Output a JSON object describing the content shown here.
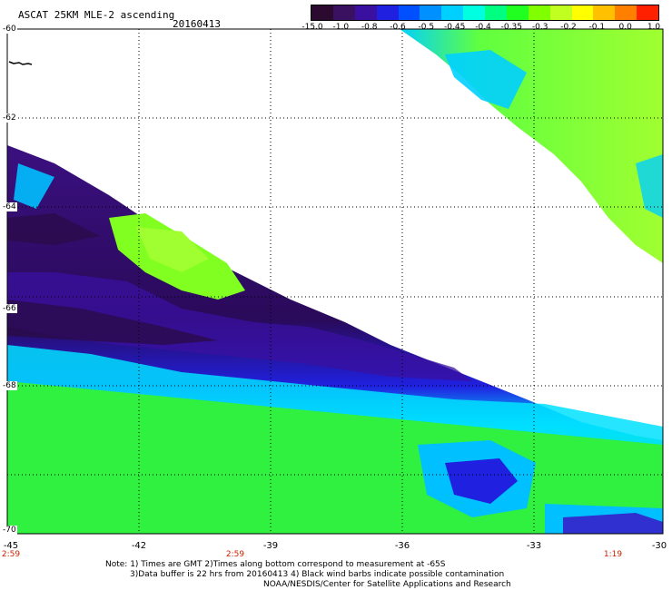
{
  "header": {
    "title": "ASCAT 25KM MLE-2 ascending",
    "date": "20160413"
  },
  "colorbar": {
    "labels": [
      "-15.0",
      "-1.0",
      "-0.8",
      "-0.6",
      "-0.5",
      "-0.45",
      "-0.4",
      "-0.35",
      "-0.3",
      "-0.2",
      "-0.1",
      "0.0",
      "1.0"
    ],
    "colors": [
      "#2a0a2e",
      "#3a1060",
      "#3a10a0",
      "#2020e0",
      "#0050ff",
      "#0090ff",
      "#00d0ff",
      "#00ffe0",
      "#00ff80",
      "#20ff20",
      "#80ff00",
      "#c0ff20",
      "#ffff00",
      "#ffc000",
      "#ff8000",
      "#ff2000"
    ]
  },
  "axes": {
    "lat_labels": [
      "-60",
      "-62",
      "-64",
      "-66",
      "-68",
      "-70"
    ],
    "lon_labels": [
      "-45",
      "-42",
      "-39",
      "-36",
      "-33",
      "-30"
    ],
    "time_labels": [
      {
        "lon": "-45",
        "text": "2:59"
      },
      {
        "lon": "-39",
        "text": "2:59"
      },
      {
        "lon": "-31.2",
        "text": "1:19"
      }
    ]
  },
  "footer": {
    "line1": "Note: 1) Times are GMT 2)Times along bottom correspond to measurement at -65S",
    "line2": "3)Data buffer is 22 hrs from 20160413 4) Black wind barbs indicate possible contamination",
    "line3": "NOAA/NESDIS/Center for Satellite Applications and Research"
  }
}
